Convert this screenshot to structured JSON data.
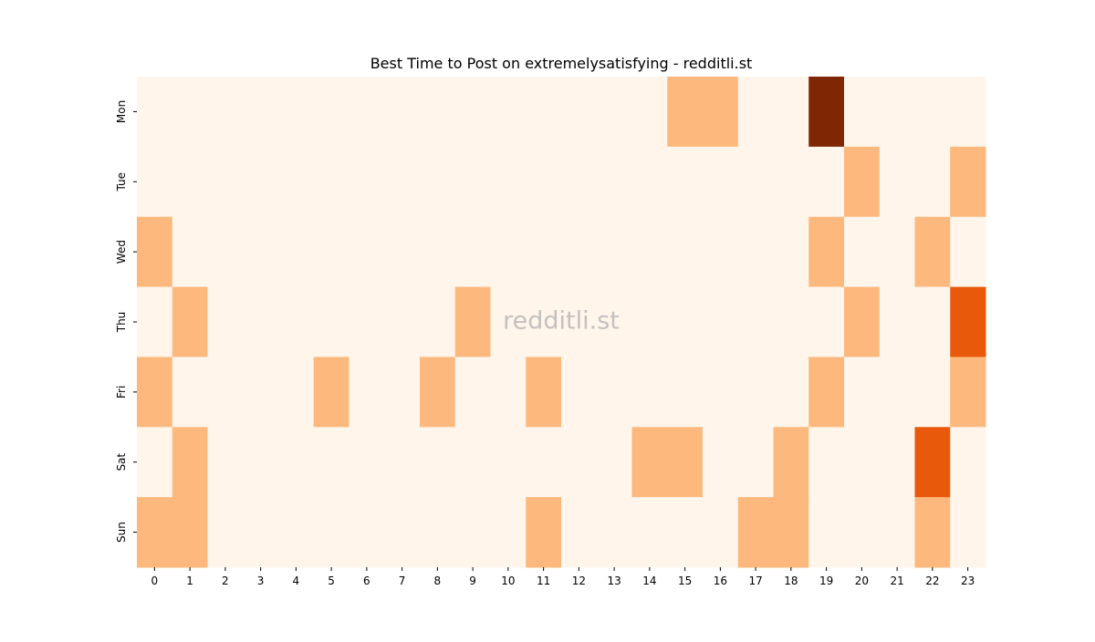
{
  "chart_data": {
    "type": "heatmap",
    "title": "Best Time to Post on extremelysatisfying - redditli.st",
    "watermark": "redditli.st",
    "x": [
      0,
      1,
      2,
      3,
      4,
      5,
      6,
      7,
      8,
      9,
      10,
      11,
      12,
      13,
      14,
      15,
      16,
      17,
      18,
      19,
      20,
      21,
      22,
      23
    ],
    "categories": [
      "Mon",
      "Tue",
      "Wed",
      "Thu",
      "Fri",
      "Sat",
      "Sun"
    ],
    "zlim": [
      0,
      3
    ],
    "colormap": [
      "#fff5eb",
      "#fdb97d",
      "#e8590c",
      "#7f2704"
    ],
    "values": [
      [
        0,
        0,
        0,
        0,
        0,
        0,
        0,
        0,
        0,
        0,
        0,
        0,
        0,
        0,
        0,
        1,
        1,
        0,
        0,
        3,
        0,
        0,
        0,
        0
      ],
      [
        0,
        0,
        0,
        0,
        0,
        0,
        0,
        0,
        0,
        0,
        0,
        0,
        0,
        0,
        0,
        0,
        0,
        0,
        0,
        0,
        1,
        0,
        0,
        1
      ],
      [
        1,
        0,
        0,
        0,
        0,
        0,
        0,
        0,
        0,
        0,
        0,
        0,
        0,
        0,
        0,
        0,
        0,
        0,
        0,
        1,
        0,
        0,
        1,
        0
      ],
      [
        0,
        1,
        0,
        0,
        0,
        0,
        0,
        0,
        0,
        1,
        0,
        0,
        0,
        0,
        0,
        0,
        0,
        0,
        0,
        0,
        1,
        0,
        0,
        2
      ],
      [
        1,
        0,
        0,
        0,
        0,
        1,
        0,
        0,
        1,
        0,
        0,
        1,
        0,
        0,
        0,
        0,
        0,
        0,
        0,
        1,
        0,
        0,
        0,
        1
      ],
      [
        0,
        1,
        0,
        0,
        0,
        0,
        0,
        0,
        0,
        0,
        0,
        0,
        0,
        0,
        1,
        1,
        0,
        0,
        1,
        0,
        0,
        0,
        2,
        0
      ],
      [
        1,
        1,
        0,
        0,
        0,
        0,
        0,
        0,
        0,
        0,
        0,
        1,
        0,
        0,
        0,
        0,
        0,
        1,
        1,
        0,
        0,
        0,
        1,
        0
      ]
    ]
  }
}
